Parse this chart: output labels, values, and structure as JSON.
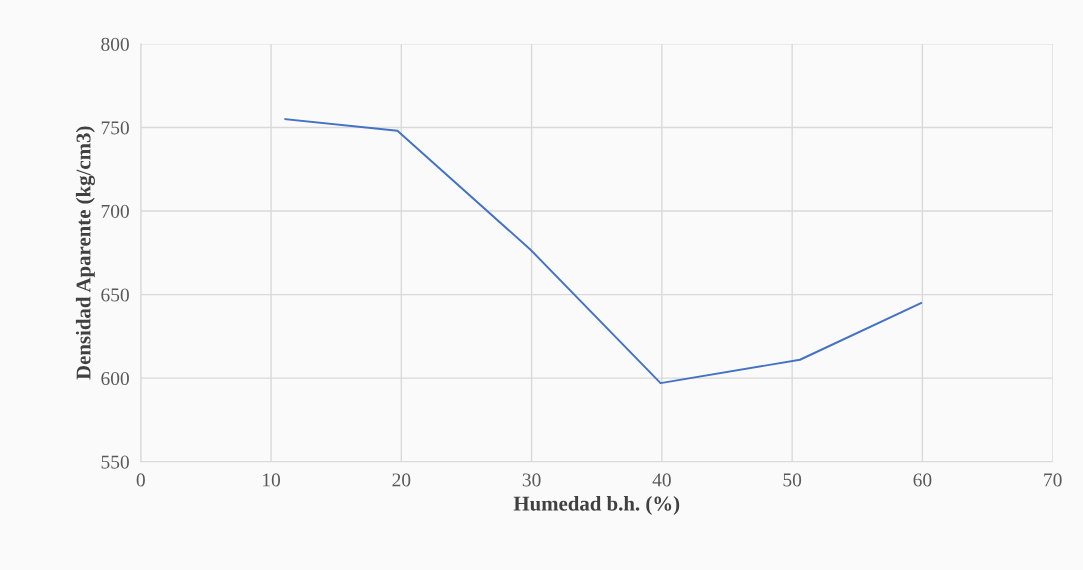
{
  "chart_data": {
    "type": "line",
    "xlabel": "Humedad b.h. (%)",
    "ylabel": "Densidad Aparente (kg/cm3)",
    "x": [
      11.1,
      19.7,
      29.9,
      39.9,
      50.6,
      59.9
    ],
    "series": [
      {
        "color": "#4472c4",
        "values": [
          755,
          748,
          677,
          597,
          611,
          645
        ]
      }
    ],
    "xlim": [
      0,
      70
    ],
    "xticks": [
      0,
      10,
      20,
      30,
      40,
      50,
      60,
      70
    ],
    "ylim": [
      550,
      800
    ],
    "yticks": [
      550,
      600,
      650,
      700,
      750,
      800
    ],
    "grid": true,
    "legend": false,
    "marker": "none",
    "line_style": "solid"
  }
}
